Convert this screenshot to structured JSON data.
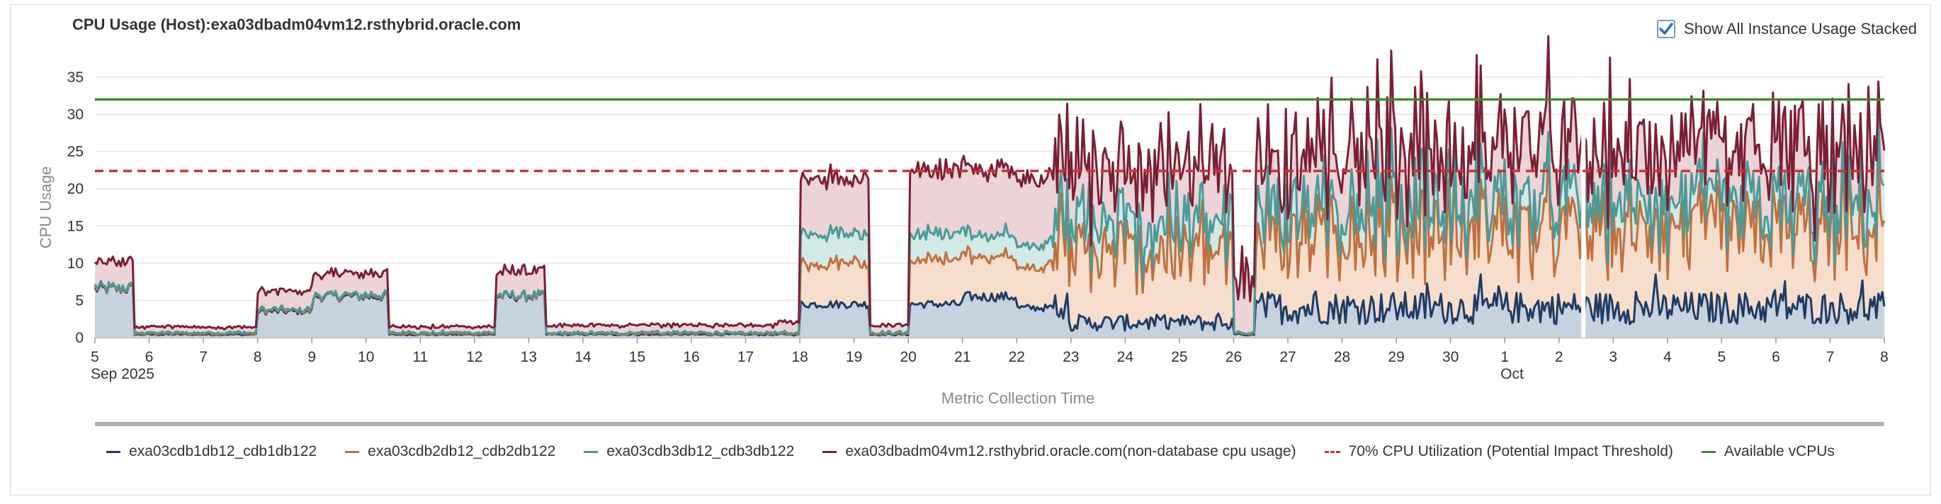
{
  "title": "CPU Usage (Host):exa03dbadm04vm12.rsthybrid.oracle.com",
  "stack_toggle": {
    "label": "Show All Instance Usage Stacked",
    "checked": true
  },
  "colors": {
    "cdb1": "#1f3b63",
    "cdb2": "#c0703e",
    "cdb3": "#4a9a98",
    "host": "#7a1f35",
    "threshold": "#d32f2f",
    "vcpus": "#3f8a2e"
  },
  "chart_data": {
    "type": "area",
    "stacked": true,
    "title": "CPU Usage (Host):exa03dbadm04vm12.rsthybrid.oracle.com",
    "xlabel": "Metric Collection Time",
    "ylabel": "CPU Usage",
    "ylim": [
      0,
      35
    ],
    "yticks": [
      0,
      5,
      10,
      15,
      20,
      25,
      30,
      35
    ],
    "grid": true,
    "legend_position": "bottom",
    "x_ticks": [
      {
        "day": 5,
        "label": "5",
        "sub": "Sep 2025"
      },
      {
        "day": 6,
        "label": "6"
      },
      {
        "day": 7,
        "label": "7"
      },
      {
        "day": 8,
        "label": "8"
      },
      {
        "day": 9,
        "label": "9"
      },
      {
        "day": 10,
        "label": "10"
      },
      {
        "day": 11,
        "label": "11"
      },
      {
        "day": 12,
        "label": "12"
      },
      {
        "day": 13,
        "label": "13"
      },
      {
        "day": 14,
        "label": "14"
      },
      {
        "day": 15,
        "label": "15"
      },
      {
        "day": 16,
        "label": "16"
      },
      {
        "day": 17,
        "label": "17"
      },
      {
        "day": 18,
        "label": "18"
      },
      {
        "day": 19,
        "label": "19"
      },
      {
        "day": 20,
        "label": "20"
      },
      {
        "day": 21,
        "label": "21"
      },
      {
        "day": 22,
        "label": "22"
      },
      {
        "day": 23,
        "label": "23"
      },
      {
        "day": 24,
        "label": "24"
      },
      {
        "day": 25,
        "label": "25"
      },
      {
        "day": 26,
        "label": "26"
      },
      {
        "day": 27,
        "label": "27"
      },
      {
        "day": 28,
        "label": "28"
      },
      {
        "day": 29,
        "label": "29"
      },
      {
        "day": 30,
        "label": "30"
      },
      {
        "day": 31,
        "label": "1",
        "sub": "Oct"
      },
      {
        "day": 32,
        "label": "2"
      },
      {
        "day": 33,
        "label": "3"
      },
      {
        "day": 34,
        "label": "4"
      },
      {
        "day": 35,
        "label": "5"
      },
      {
        "day": 36,
        "label": "6"
      },
      {
        "day": 37,
        "label": "7"
      },
      {
        "day": 38,
        "label": "8"
      }
    ],
    "x_range": [
      5,
      38
    ],
    "series": [
      {
        "name": "exa03cdb1db12_cdb1db122",
        "key": "cdb1",
        "approx_level_by_period": [
          [
            5,
            6.5
          ],
          [
            5.7,
            0.3
          ],
          [
            7,
            0.3
          ],
          [
            8,
            3.5
          ],
          [
            9,
            5.5
          ],
          [
            10.4,
            0.3
          ],
          [
            12.4,
            5.5
          ],
          [
            13.3,
            0.3
          ],
          [
            17.6,
            0.3
          ],
          [
            18,
            4.5
          ],
          [
            19.3,
            0.3
          ],
          [
            20,
            4.5
          ],
          [
            21,
            5.5
          ],
          [
            22,
            4.0
          ],
          [
            22.7,
            4.5
          ],
          [
            23,
            2.0
          ],
          [
            26,
            0.3
          ],
          [
            26.4,
            4.0
          ],
          [
            38,
            4.0
          ]
        ]
      },
      {
        "name": "exa03cdb2db12_cdb2db122",
        "key": "cdb2",
        "approx_level_by_period": [
          [
            17.6,
            0
          ],
          [
            18,
            5.5
          ],
          [
            19.3,
            0
          ],
          [
            20,
            6.0
          ],
          [
            21,
            5.5
          ],
          [
            22.7,
            9.0
          ],
          [
            26,
            0
          ],
          [
            26.4,
            10.0
          ],
          [
            38,
            10.0
          ]
        ]
      },
      {
        "name": "exa03cdb3db12_cdb3db122",
        "key": "cdb3",
        "approx_level_by_period": [
          [
            17.6,
            0
          ],
          [
            18,
            4.0
          ],
          [
            19.3,
            0
          ],
          [
            20,
            3.5
          ],
          [
            21,
            3.0
          ],
          [
            22.7,
            3.5
          ],
          [
            26,
            0
          ],
          [
            26.4,
            3.5
          ],
          [
            38,
            3.5
          ]
        ]
      },
      {
        "name": "exa03dbadm04vm12.rsthybrid.oracle.com(non-database cpu usage)",
        "key": "host",
        "approx_level_by_period": [
          [
            5,
            3.3
          ],
          [
            5.7,
            0.8
          ],
          [
            7,
            0.7
          ],
          [
            8,
            2.5
          ],
          [
            9,
            2.8
          ],
          [
            10.4,
            0.8
          ],
          [
            12.4,
            3.2
          ],
          [
            13.3,
            1.0
          ],
          [
            17.6,
            1.5
          ],
          [
            18,
            7.5
          ],
          [
            19.3,
            1.0
          ],
          [
            20,
            8.5
          ],
          [
            21,
            9.0
          ],
          [
            22.7,
            7.0
          ],
          [
            26,
            7.0
          ],
          [
            26.4,
            7.0
          ],
          [
            38,
            6.5
          ]
        ]
      }
    ],
    "reference_lines": [
      {
        "name": "70% CPU Utilization (Potential Impact Threshold)",
        "key": "threshold",
        "value": 22.4,
        "style": "dashed"
      },
      {
        "name": "Available vCPUs",
        "key": "vcpus",
        "value": 32,
        "style": "solid"
      }
    ]
  }
}
